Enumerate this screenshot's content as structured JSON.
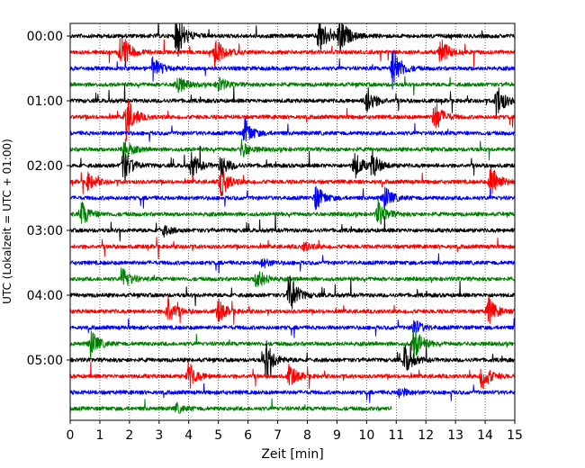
{
  "chart_data": {
    "type": "line",
    "title": "",
    "xlabel": "Zeit  [min]",
    "ylabel": "UTC (Lokalzeit = UTC + 01:00)",
    "xlim": [
      0,
      15
    ],
    "x_ticks": [
      "0",
      "1",
      "2",
      "3",
      "4",
      "5",
      "6",
      "7",
      "8",
      "9",
      "10",
      "11",
      "12",
      "13",
      "14",
      "15"
    ],
    "y_ticks": [
      "00:00",
      "01:00",
      "02:00",
      "03:00",
      "04:00",
      "05:00"
    ],
    "grid": "x-dotted",
    "trace_interval_min": 15,
    "trace_colors": [
      "#000000",
      "#ff0000",
      "#0000ff",
      "#008000"
    ],
    "last_trace_end_min": 10.85,
    "traces": [
      {
        "start": "00:00",
        "color": "#000000",
        "events": [
          [
            3.6,
            3.5
          ],
          [
            8.4,
            3.0
          ],
          [
            9.1,
            2.8
          ]
        ]
      },
      {
        "start": "00:15",
        "color": "#ff0000",
        "events": [
          [
            1.7,
            3.2
          ],
          [
            4.9,
            2.4
          ],
          [
            12.5,
            2.0
          ]
        ]
      },
      {
        "start": "00:30",
        "color": "#0000ff",
        "events": [
          [
            2.8,
            1.6
          ],
          [
            10.9,
            3.2
          ]
        ]
      },
      {
        "start": "00:45",
        "color": "#008000",
        "events": [
          [
            3.6,
            1.4
          ],
          [
            5.0,
            1.1
          ]
        ]
      },
      {
        "start": "01:00",
        "color": "#000000",
        "events": [
          [
            10.0,
            2.2
          ],
          [
            14.4,
            2.4
          ]
        ]
      },
      {
        "start": "01:15",
        "color": "#ff0000",
        "events": [
          [
            1.9,
            3.1
          ],
          [
            12.3,
            2.3
          ]
        ]
      },
      {
        "start": "01:30",
        "color": "#0000ff",
        "events": [
          [
            5.9,
            1.9
          ]
        ]
      },
      {
        "start": "01:45",
        "color": "#008000",
        "events": [
          [
            1.8,
            1.6
          ],
          [
            5.8,
            1.2
          ]
        ]
      },
      {
        "start": "02:00",
        "color": "#000000",
        "events": [
          [
            1.8,
            2.3
          ],
          [
            4.1,
            1.7
          ],
          [
            5.1,
            1.6
          ],
          [
            9.6,
            1.9
          ],
          [
            10.2,
            1.7
          ]
        ]
      },
      {
        "start": "02:15",
        "color": "#ff0000",
        "events": [
          [
            0.6,
            1.2
          ],
          [
            5.1,
            2.1
          ],
          [
            14.2,
            2.6
          ]
        ]
      },
      {
        "start": "02:30",
        "color": "#0000ff",
        "events": [
          [
            8.3,
            1.8
          ],
          [
            10.6,
            1.7
          ]
        ]
      },
      {
        "start": "02:45",
        "color": "#008000",
        "events": [
          [
            0.4,
            1.7
          ],
          [
            10.4,
            1.9
          ]
        ]
      },
      {
        "start": "03:00",
        "color": "#000000",
        "events": [
          [
            3.1,
            0.9
          ]
        ]
      },
      {
        "start": "03:15",
        "color": "#ff0000",
        "events": [
          [
            7.9,
            0.6
          ]
        ]
      },
      {
        "start": "03:30",
        "color": "#0000ff",
        "events": [
          [
            6.5,
            0.6
          ]
        ]
      },
      {
        "start": "03:45",
        "color": "#008000",
        "events": [
          [
            1.8,
            1.5
          ],
          [
            6.3,
            1.7
          ]
        ]
      },
      {
        "start": "04:00",
        "color": "#000000",
        "events": [
          [
            7.4,
            3.1
          ]
        ]
      },
      {
        "start": "04:15",
        "color": "#ff0000",
        "events": [
          [
            3.3,
            2.1
          ],
          [
            5.0,
            1.6
          ],
          [
            14.1,
            2.0
          ]
        ]
      },
      {
        "start": "04:30",
        "color": "#0000ff",
        "events": [
          [
            11.6,
            1.2
          ]
        ]
      },
      {
        "start": "04:45",
        "color": "#008000",
        "events": [
          [
            0.7,
            1.9
          ],
          [
            11.6,
            2.6
          ]
        ]
      },
      {
        "start": "05:00",
        "color": "#000000",
        "events": [
          [
            6.6,
            2.8
          ],
          [
            11.3,
            2.1
          ]
        ]
      },
      {
        "start": "05:15",
        "color": "#ff0000",
        "events": [
          [
            4.0,
            1.9
          ],
          [
            7.4,
            1.6
          ],
          [
            13.9,
            2.0
          ]
        ]
      },
      {
        "start": "05:30",
        "color": "#0000ff",
        "events": [
          [
            11.1,
            0.7
          ]
        ]
      },
      {
        "start": "05:45",
        "color": "#008000",
        "events": [
          [
            3.6,
            0.6
          ]
        ]
      }
    ]
  }
}
